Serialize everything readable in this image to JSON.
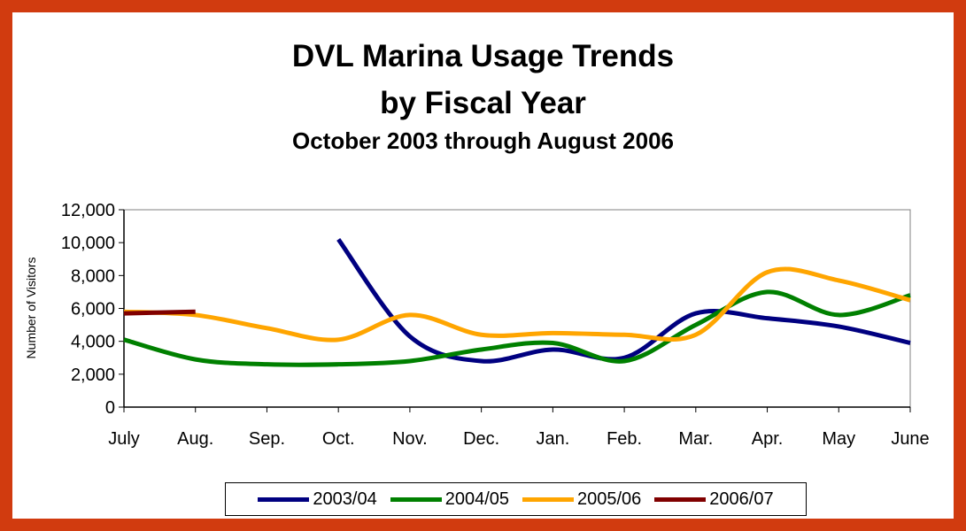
{
  "chart_data": {
    "type": "line",
    "title": "DVL Marina Usage Trends",
    "title_line2": "by Fiscal Year",
    "subtitle": "October 2003 through August 2006",
    "ylabel": "Number of Visitors",
    "xlabel": "",
    "categories": [
      "July",
      "Aug.",
      "Sep.",
      "Oct.",
      "Nov.",
      "Dec.",
      "Jan.",
      "Feb.",
      "Mar.",
      "Apr.",
      "May",
      "June"
    ],
    "ylim": [
      0,
      12000
    ],
    "yticks": [
      "0",
      "2,000",
      "4,000",
      "6,000",
      "8,000",
      "10,000",
      "12,000"
    ],
    "grid": false,
    "legend_position": "bottom",
    "series": [
      {
        "name": "2003/04",
        "color": "#000080",
        "values": [
          null,
          null,
          null,
          10200,
          4300,
          2800,
          3500,
          3000,
          5700,
          5400,
          4900,
          3900
        ]
      },
      {
        "name": "2004/05",
        "color": "#008000",
        "values": [
          4100,
          2900,
          2600,
          2600,
          2800,
          3500,
          3900,
          2800,
          5000,
          7000,
          5600,
          6800
        ]
      },
      {
        "name": "2005/06",
        "color": "#FFA500",
        "values": [
          5800,
          5600,
          4800,
          4100,
          5600,
          4400,
          4500,
          4400,
          4400,
          8200,
          7700,
          6500
        ]
      },
      {
        "name": "2006/07",
        "color": "#800000",
        "values": [
          5700,
          5800,
          null,
          null,
          null,
          null,
          null,
          null,
          null,
          null,
          null,
          null
        ]
      }
    ]
  }
}
